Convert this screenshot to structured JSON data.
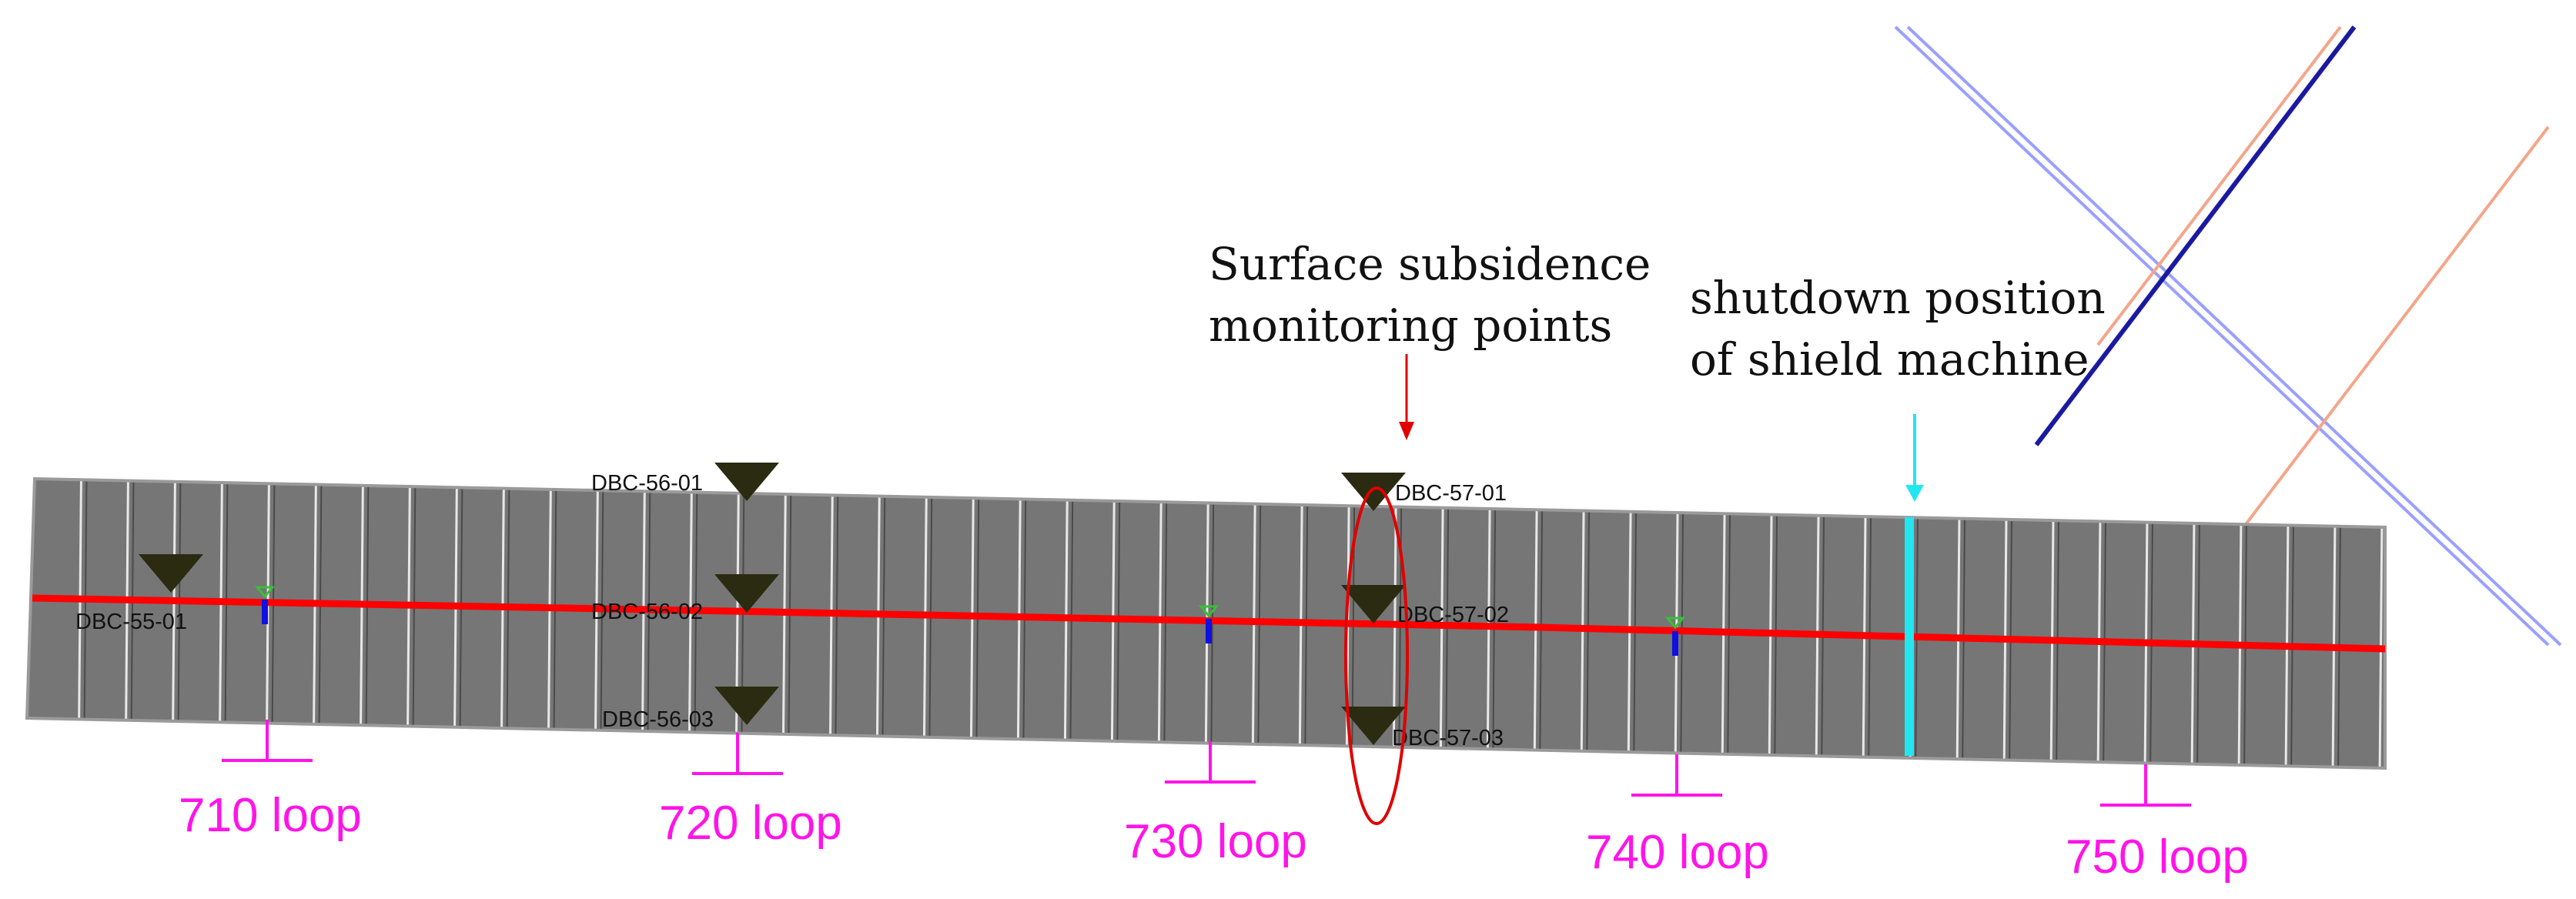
{
  "annotations": {
    "monitoring": [
      "Surface subsidence",
      "monitoring points"
    ],
    "shutdown": [
      "shutdown position",
      "of shield machine"
    ]
  },
  "monitoring_points": [
    {
      "id": "DBC-55-01"
    },
    {
      "id": "DBC-56-01"
    },
    {
      "id": "DBC-56-02"
    },
    {
      "id": "DBC-56-03"
    },
    {
      "id": "DBC-57-01"
    },
    {
      "id": "DBC-57-02"
    },
    {
      "id": "DBC-57-03"
    }
  ],
  "loops": [
    "710 loop",
    "720 loop",
    "730 loop",
    "740 loop",
    "750 loop"
  ],
  "colors": {
    "segment_fill": "#767676",
    "segment_line": "#e8e8e8",
    "axis_line": "#ff0000",
    "loop_marker": "#ff14e8",
    "shutdown_line": "#22e6f0",
    "highlight_ellipse": "#e00000",
    "triangle": "#2b2b12",
    "crossing_blue_light": "#9aa0ff",
    "crossing_blue_dark": "#1a1aa0",
    "crossing_salmon": "#f4a58a"
  }
}
